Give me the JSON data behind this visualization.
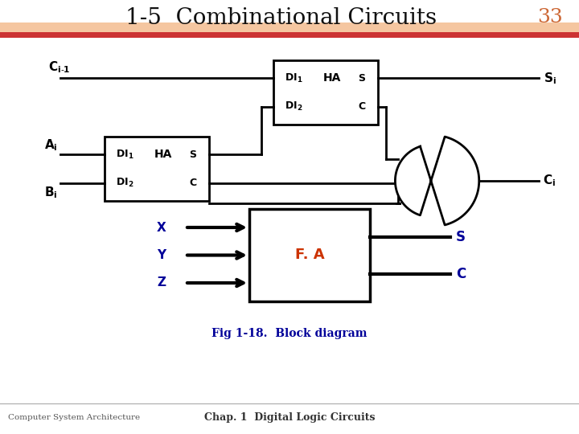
{
  "title": "1-5  Combinational Circuits",
  "title_fontsize": 20,
  "page_number": "33",
  "background_color": "#ffffff",
  "top_bar_color1": "#f5c6a0",
  "top_bar_color2": "#cc3333",
  "footer_text_left": "Computer System Architecture",
  "footer_text_right": "Chap. 1  Digital Logic Circuits",
  "caption": "Fig 1-18.  Block diagram",
  "line_color": "#000000",
  "xyz_color": "#000099",
  "sc_color": "#000099",
  "fa_label_color": "#cc3300",
  "caption_color": "#000099"
}
